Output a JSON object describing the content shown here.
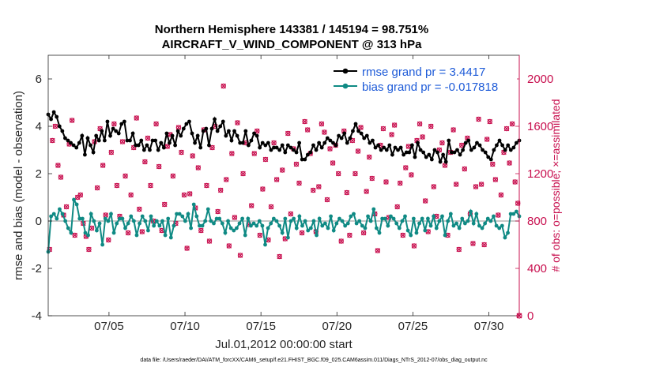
{
  "chart_data": {
    "type": "line",
    "title": [
      "Northern Hemisphere 143381 / 145194 = 98.751%",
      "AIRCRAFT_V_WIND_COMPONENT @ 313 hPa"
    ],
    "xlabel": "Jul.01,2012 00:00:00 start",
    "ylabel": "rmse and bias (model - observation)",
    "ylabel_right": "# of obs: o=possible; ×=assimilated",
    "ylim": [
      -4,
      7
    ],
    "yticks": [
      -4,
      -2,
      0,
      2,
      4,
      6
    ],
    "ylim_right": [
      0,
      2200
    ],
    "yticks_right": [
      0,
      400,
      800,
      1200,
      1600,
      2000
    ],
    "xlim": [
      1,
      32
    ],
    "xticks": [
      5,
      10,
      15,
      20,
      25,
      30
    ],
    "xticklabels": [
      "07/05",
      "07/10",
      "07/15",
      "07/20",
      "07/25",
      "07/30"
    ],
    "legend_position": "top-right",
    "colors": {
      "rmse": "#000000",
      "bias": "#0f8a84",
      "counts": "#c8104f",
      "zero": "#b5b5b5"
    },
    "series": [
      {
        "name": "rmse grand pr = 3.4417",
        "values": [
          4.5,
          4.3,
          4.6,
          4.4,
          4.0,
          3.8,
          3.5,
          3.4,
          3.3,
          3.2,
          3.1,
          3.3,
          3.6,
          2.8,
          3.5,
          3.2,
          2.9,
          3.6,
          3.4,
          3.8,
          3.4,
          4.2,
          3.6,
          3.9,
          3.8,
          3.7,
          4.1,
          4.2,
          3.4,
          3.4,
          3.7,
          3.2,
          3.2,
          3.4,
          3.0,
          3.2,
          3.0,
          3.4,
          3.4,
          3.0,
          3.3,
          3.1,
          3.7,
          3.3,
          3.6,
          3.2,
          3.8,
          3.6,
          3.9,
          4.1,
          4.2,
          3.7,
          3.3,
          3.6,
          3.1,
          3.8,
          3.9,
          3.2,
          3.9,
          4.3,
          3.8,
          4.0,
          4.2,
          3.6,
          3.8,
          3.4,
          3.8,
          3.6,
          3.3,
          3.3,
          3.8,
          3.2,
          3.4,
          3.7,
          3.6,
          3.1,
          3.3,
          3.2,
          3.3,
          3.0,
          3.1,
          3.1,
          3.0,
          3.2,
          2.9,
          3.2,
          3.1,
          3.0,
          2.9,
          3.3,
          2.6,
          2.6,
          2.8,
          2.9,
          3.2,
          3.0,
          3.3,
          3.1,
          3.3,
          3.5,
          3.4,
          3.3,
          3.2,
          3.6,
          3.5,
          3.7,
          3.3,
          3.5,
          3.8,
          4.1,
          3.8,
          3.7,
          3.5,
          3.6,
          3.3,
          3.4,
          3.1,
          3.2,
          3.0,
          3.1,
          3.0,
          3.2,
          2.8,
          3.1,
          3.0,
          3.1,
          2.8,
          2.9,
          2.9,
          3.2,
          2.7,
          3.3,
          3.0,
          2.9,
          2.7,
          2.8,
          2.6,
          3.0,
          2.9,
          2.5,
          2.8,
          2.5,
          3.4,
          2.9,
          2.9,
          3.0,
          2.8,
          3.0,
          3.3,
          3.4,
          3.0,
          3.1,
          3.3,
          3.2,
          3.0,
          2.9,
          2.7,
          2.6,
          3.0,
          3.2,
          3.4,
          3.2,
          3.0,
          3.2,
          3.0,
          3.1,
          3.3,
          3.4
        ]
      },
      {
        "name": "bias grand pr = -0.017818",
        "values": [
          -1.3,
          0.2,
          0.3,
          0.1,
          0.5,
          0.3,
          0.0,
          -0.3,
          -0.5,
          0.9,
          0.7,
          0.1,
          0.1,
          -0.5,
          -0.6,
          0.3,
          0.0,
          -0.4,
          -0.1,
          -1.0,
          0.1,
          0.0,
          0.3,
          -0.5,
          -0.1,
          0.1,
          0.1,
          -0.3,
          -0.1,
          0.2,
          0.0,
          -0.6,
          -0.1,
          0.2,
          0.0,
          -0.4,
          0.2,
          -0.2,
          0.0,
          -0.2,
          0.0,
          -0.6,
          0.1,
          -0.7,
          -0.2,
          0.3,
          0.3,
          0.2,
          0.0,
          0.3,
          -0.3,
          0.7,
          0.2,
          -0.2,
          -0.2,
          0.0,
          0.5,
          0.0,
          -0.1,
          0.1,
          0.1,
          -0.1,
          -0.5,
          0.0,
          -0.3,
          -0.4,
          -0.3,
          -0.1,
          0.1,
          -0.6,
          0.1,
          -0.2,
          -0.1,
          -0.2,
          0.0,
          -0.2,
          -1.0,
          -0.3,
          -0.1,
          0.1,
          0.0,
          -0.2,
          -0.5,
          0.1,
          -0.7,
          0.0,
          0.1,
          -0.3,
          0.2,
          -0.2,
          0.0,
          -0.4,
          -0.3,
          0.0,
          -0.6,
          0.1,
          -0.2,
          -0.1,
          -0.3,
          0.2,
          -0.4,
          -0.1,
          0.1,
          0.0,
          -0.2,
          -0.1,
          0.2,
          0.3,
          -0.1,
          0.0,
          -0.2,
          -0.3,
          0.2,
          0.0,
          0.5,
          -0.3,
          -0.5,
          0.1,
          0.1,
          -0.2,
          0.2,
          0.1,
          -0.1,
          -0.3,
          0.0,
          0.2,
          -0.4,
          -0.6,
          0.1,
          -0.5,
          -0.1,
          0.1,
          -0.4,
          0.1,
          -0.2,
          0.2,
          -0.3,
          0.0,
          0.2,
          -0.6,
          0.0,
          0.3,
          -0.2,
          -0.1,
          -0.3,
          0.1,
          -0.1,
          0.0,
          0.4,
          -0.1,
          0.3,
          -0.2,
          -0.3,
          -0.1,
          0.1,
          0.0,
          0.2,
          -0.2,
          -0.3,
          -0.2,
          -0.7,
          -0.5,
          0.3,
          0.3,
          0.4,
          0.2
        ]
      }
    ],
    "counts_possible": [
      560,
      1480,
      1600,
      1270,
      1170,
      850,
      920,
      1450,
      1650,
      680,
      1000,
      1020,
      780,
      670,
      560,
      740,
      1470,
      1080,
      1580,
      1270,
      850,
      640,
      1380,
      1620,
      1100,
      840,
      1470,
      1180,
      700,
      1020,
      1420,
      1670,
      900,
      710,
      1300,
      1500,
      1100,
      800,
      1620,
      1260,
      720,
      940,
      1430,
      1530,
      1180,
      780,
      1590,
      1380,
      1020,
      570,
      1030,
      1350,
      910,
      1250,
      720,
      1570,
      1100,
      630,
      1420,
      1600,
      880,
      1060,
      1940,
      1150,
      590,
      1370,
      830,
      1630,
      510,
      1200,
      1460,
      770,
      930,
      1370,
      1560,
      680,
      1070,
      1320,
      640,
      920,
      1460,
      1150,
      500,
      1230,
      650,
      1540,
      860,
      1410,
      1280,
      1120,
      700,
      1640,
      1570,
      1370,
      1060,
      710,
      1090,
      1620,
      1550,
      980,
      1410,
      1290,
      1440,
      1200,
      630,
      1560,
      1040,
      680,
      1480,
      1200,
      1390,
      1590,
      700,
      1050,
      1340,
      1160,
      860,
      550,
      1440,
      1580,
      1130,
      830,
      1530,
      1610,
      920,
      1120,
      680,
      1250,
      1430,
      1190,
      590,
      1480,
      1620,
      1510,
      970,
      710,
      1600,
      1090,
      840,
      1400,
      1460,
      1270,
      680,
      1380,
      1570,
      1110,
      560,
      1440,
      1240,
      1500,
      860,
      610,
      1090,
      1660,
      1110,
      600,
      1490,
      1640,
      1280,
      1150,
      850,
      1020,
      1380,
      1580,
      1290,
      1620,
      1130,
      950
    ]
  },
  "footer": "data file: /Users/raeder/DAI/ATM_forcXX/CAM6_setup/f.e21.FHIST_BGC.f09_025.CAM6assim.011/Diags_NTrS_2012-07/obs_diag_output.nc"
}
